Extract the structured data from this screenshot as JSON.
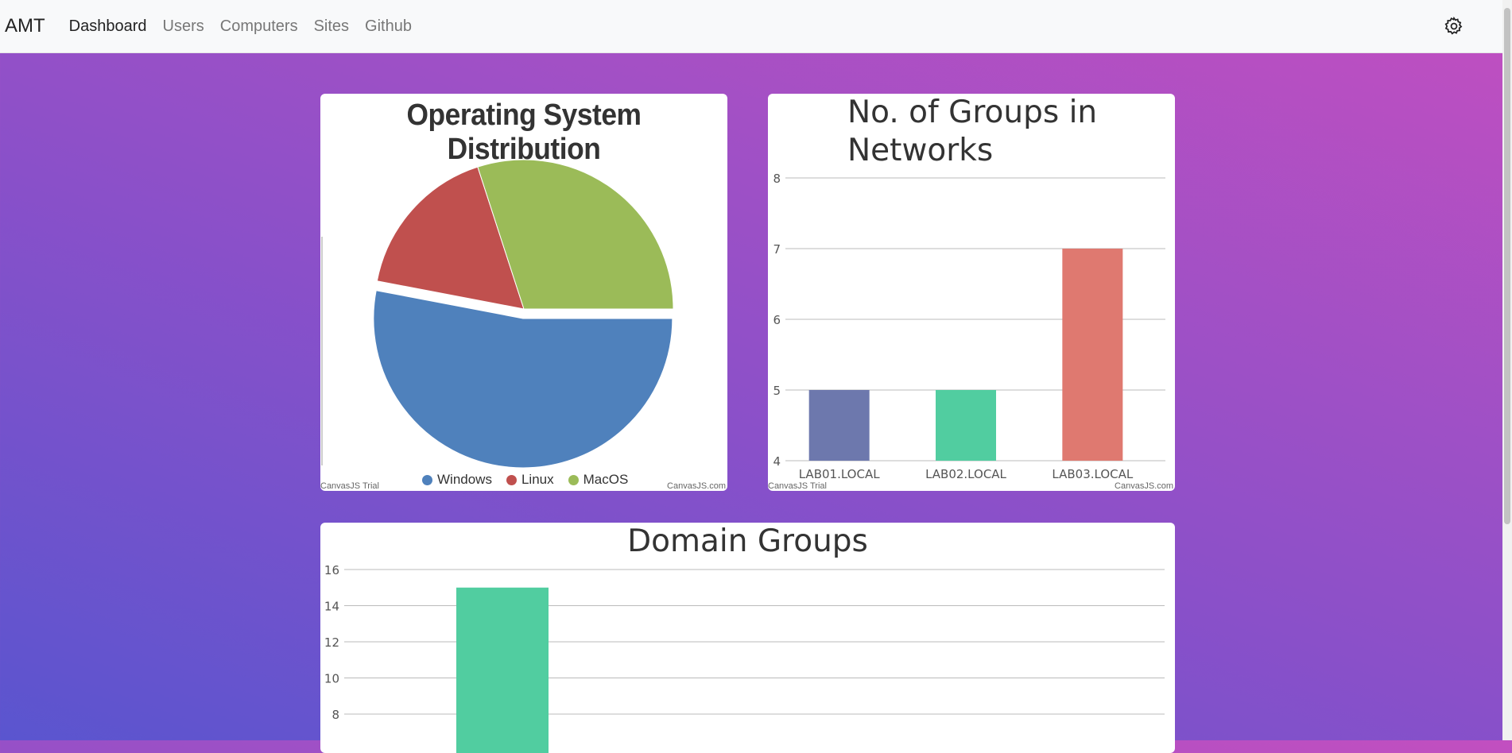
{
  "nav": {
    "brand": "AMT",
    "links": [
      "Dashboard",
      "Users",
      "Computers",
      "Sites",
      "Github"
    ],
    "active": "Dashboard",
    "settings_icon": "gear-icon"
  },
  "watermark": {
    "left": "CanvasJS Trial",
    "right": "CanvasJS.com"
  },
  "chart_data": [
    {
      "type": "pie",
      "title": "Operating System Distribution",
      "slices": [
        {
          "label": "Windows",
          "value": 53,
          "color": "#4f81bc",
          "exploded": true
        },
        {
          "label": "Linux",
          "value": 17,
          "color": "#c0504e"
        },
        {
          "label": "MacOS",
          "value": 30,
          "color": "#9bbb58"
        }
      ],
      "legend": "bottom"
    },
    {
      "type": "bar",
      "title": "No. of Groups in Networks",
      "categories": [
        "LAB01.LOCAL",
        "LAB02.LOCAL",
        "LAB03.LOCAL"
      ],
      "values": [
        5,
        5,
        7
      ],
      "colors": [
        "#6d78ad",
        "#51cda0",
        "#df7970"
      ],
      "ylim": [
        4,
        8
      ],
      "yticks": [
        4,
        5,
        6,
        7,
        8
      ],
      "grid": true
    },
    {
      "type": "bar",
      "title": "Domain Groups",
      "values": [
        15
      ],
      "colors": [
        "#51cda0"
      ],
      "ylim": [
        0,
        16
      ],
      "yticks": [
        8,
        10,
        12,
        14,
        16
      ],
      "grid": true
    }
  ]
}
